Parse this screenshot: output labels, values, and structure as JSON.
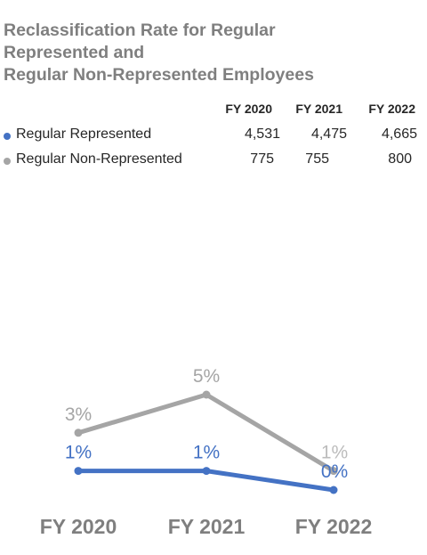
{
  "title": {
    "lines": [
      "Reclassification Rate for Regular",
      "Represented and",
      "Regular Non-Represented Employees"
    ]
  },
  "table": {
    "headers": [
      "FY 2020",
      "FY 2021",
      "FY 2022"
    ],
    "rows": [
      {
        "label": "Regular Represented",
        "values": [
          "4,531",
          "4,475",
          "4,665"
        ],
        "color": "#4472c4"
      },
      {
        "label": "Regular Non-Represented",
        "values": [
          "775",
          "755",
          "800"
        ],
        "color": "#a5a5a5"
      }
    ]
  },
  "chart_data": {
    "type": "line",
    "categories": [
      "FY 2020",
      "FY 2021",
      "FY 2022"
    ],
    "series": [
      {
        "name": "Regular Non-Represented",
        "color": "#a5a5a5",
        "values": [
          3,
          5,
          1
        ],
        "labels": [
          "3%",
          "5%",
          "1%"
        ]
      },
      {
        "name": "Regular Represented",
        "color": "#4472c4",
        "values": [
          1,
          1,
          0
        ],
        "labels": [
          "1%",
          "1%",
          "0%"
        ]
      }
    ],
    "grid": false,
    "legend": "table-top"
  }
}
